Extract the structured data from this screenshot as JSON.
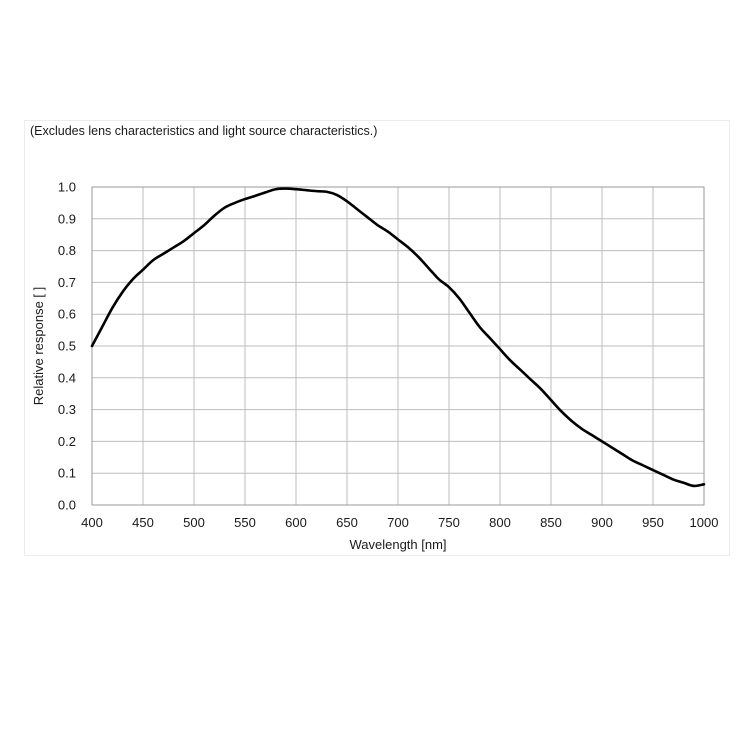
{
  "chart_data": {
    "type": "line",
    "note": "(Excludes lens characteristics and light source characteristics.)",
    "xlabel": "Wavelength [nm]",
    "ylabel": "Relative response [ ]",
    "xlim": [
      400,
      1000
    ],
    "ylim": [
      0.0,
      1.0
    ],
    "x_ticks": [
      "400",
      "450",
      "500",
      "550",
      "600",
      "650",
      "700",
      "750",
      "800",
      "850",
      "900",
      "950",
      "1000"
    ],
    "y_ticks": [
      "0.0",
      "0.1",
      "0.2",
      "0.3",
      "0.4",
      "0.5",
      "0.6",
      "0.7",
      "0.8",
      "0.9",
      "1.0"
    ],
    "grid": true,
    "series": [
      {
        "color": "#000000",
        "x": [
          400,
          410,
          420,
          430,
          440,
          450,
          460,
          470,
          480,
          490,
          500,
          510,
          520,
          530,
          540,
          550,
          560,
          570,
          580,
          590,
          600,
          610,
          620,
          630,
          640,
          650,
          660,
          670,
          680,
          690,
          700,
          710,
          720,
          730,
          740,
          750,
          760,
          770,
          780,
          790,
          800,
          810,
          820,
          830,
          840,
          850,
          860,
          870,
          880,
          890,
          900,
          910,
          920,
          930,
          940,
          950,
          960,
          970,
          980,
          990,
          1000
        ],
        "y": [
          0.5,
          0.56,
          0.62,
          0.67,
          0.71,
          0.74,
          0.77,
          0.79,
          0.81,
          0.83,
          0.855,
          0.88,
          0.91,
          0.935,
          0.95,
          0.962,
          0.972,
          0.983,
          0.993,
          0.995,
          0.993,
          0.99,
          0.987,
          0.985,
          0.975,
          0.955,
          0.93,
          0.905,
          0.88,
          0.86,
          0.835,
          0.81,
          0.78,
          0.745,
          0.71,
          0.685,
          0.65,
          0.605,
          0.56,
          0.525,
          0.49,
          0.455,
          0.425,
          0.395,
          0.365,
          0.33,
          0.295,
          0.265,
          0.24,
          0.22,
          0.2,
          0.18,
          0.16,
          0.14,
          0.125,
          0.11,
          0.095,
          0.08,
          0.07,
          0.06,
          0.065
        ]
      }
    ]
  }
}
